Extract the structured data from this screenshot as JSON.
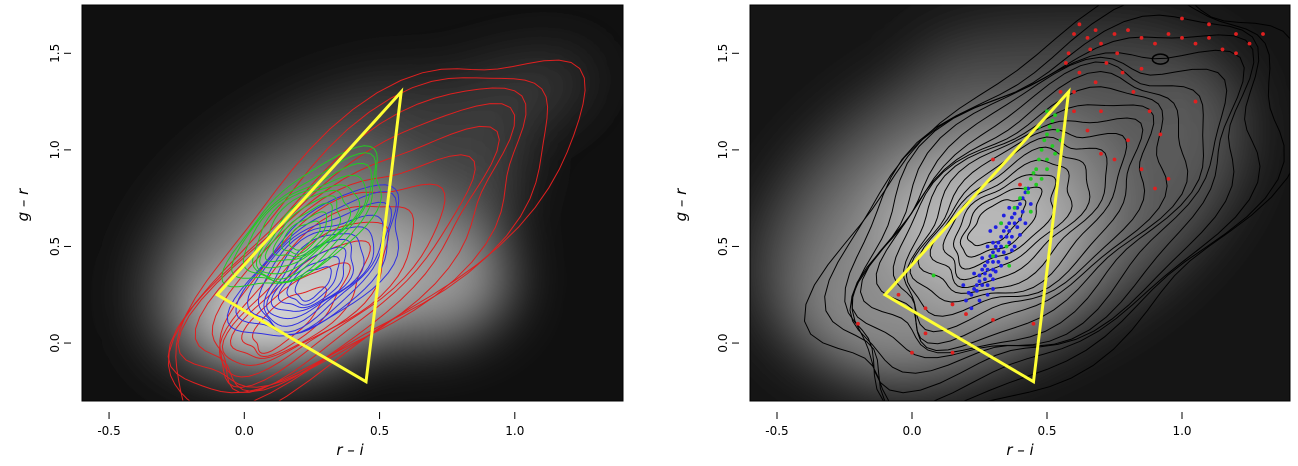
{
  "chart_data": [
    {
      "type": "scatter",
      "title": "",
      "xlabel": "r – i",
      "ylabel": "g – r",
      "xlim": [
        -0.6,
        1.4
      ],
      "ylim": [
        -0.3,
        1.75
      ],
      "x_ticks": [
        "-0.5",
        "0.0",
        "0.5",
        "1.0"
      ],
      "y_ticks": [
        "0.0",
        "0.5",
        "1.0",
        "1.5"
      ],
      "background": "grayscale density map",
      "selection_triangle": {
        "color": "#ffff33",
        "vertices": [
          [
            -0.1,
            0.25
          ],
          [
            0.58,
            1.3
          ],
          [
            0.45,
            -0.2
          ]
        ]
      },
      "contour_sets": [
        {
          "color": "#e02020",
          "levels": 12,
          "center": [
            0.13,
            0.08
          ]
        },
        {
          "color": "#3030e0",
          "levels": 10,
          "center": [
            0.25,
            0.3
          ]
        },
        {
          "color": "#22cc22",
          "levels": 10,
          "center": [
            0.22,
            0.55
          ]
        }
      ],
      "grid": false
    },
    {
      "type": "scatter",
      "title": "",
      "xlabel": "r – i",
      "ylabel": "g – r",
      "xlim": [
        -0.6,
        1.4
      ],
      "ylim": [
        -0.3,
        1.75
      ],
      "x_ticks": [
        "-0.5",
        "0.0",
        "0.5",
        "1.0"
      ],
      "y_ticks": [
        "0.0",
        "0.5",
        "1.0",
        "1.5"
      ],
      "background": "grayscale density map",
      "selection_triangle": {
        "color": "#ffff33",
        "vertices": [
          [
            -0.1,
            0.25
          ],
          [
            0.58,
            1.3
          ],
          [
            0.45,
            -0.2
          ]
        ]
      },
      "contour_color": "#000000",
      "series": [
        {
          "color": "#2020e0",
          "points": [
            [
              0.2,
              0.22
            ],
            [
              0.22,
              0.25
            ],
            [
              0.24,
              0.3
            ],
            [
              0.25,
              0.35
            ],
            [
              0.26,
              0.38
            ],
            [
              0.27,
              0.4
            ],
            [
              0.28,
              0.42
            ],
            [
              0.29,
              0.45
            ],
            [
              0.3,
              0.47
            ],
            [
              0.31,
              0.5
            ],
            [
              0.32,
              0.52
            ],
            [
              0.33,
              0.55
            ],
            [
              0.34,
              0.58
            ],
            [
              0.35,
              0.6
            ],
            [
              0.36,
              0.62
            ],
            [
              0.37,
              0.65
            ],
            [
              0.38,
              0.67
            ],
            [
              0.39,
              0.7
            ],
            [
              0.4,
              0.72
            ],
            [
              0.41,
              0.75
            ],
            [
              0.42,
              0.78
            ],
            [
              0.43,
              0.8
            ],
            [
              0.23,
              0.28
            ],
            [
              0.25,
              0.32
            ],
            [
              0.27,
              0.36
            ],
            [
              0.28,
              0.38
            ],
            [
              0.3,
              0.42
            ],
            [
              0.31,
              0.45
            ],
            [
              0.32,
              0.48
            ],
            [
              0.33,
              0.5
            ],
            [
              0.35,
              0.55
            ],
            [
              0.36,
              0.58
            ],
            [
              0.38,
              0.62
            ],
            [
              0.26,
              0.3
            ],
            [
              0.29,
              0.35
            ],
            [
              0.3,
              0.38
            ],
            [
              0.32,
              0.42
            ],
            [
              0.34,
              0.47
            ],
            [
              0.36,
              0.52
            ],
            [
              0.37,
              0.55
            ],
            [
              0.39,
              0.6
            ],
            [
              0.4,
              0.64
            ],
            [
              0.41,
              0.68
            ],
            [
              0.21,
              0.26
            ],
            [
              0.24,
              0.27
            ],
            [
              0.27,
              0.33
            ],
            [
              0.28,
              0.3
            ],
            [
              0.3,
              0.33
            ],
            [
              0.31,
              0.37
            ],
            [
              0.33,
              0.4
            ],
            [
              0.35,
              0.44
            ],
            [
              0.37,
              0.48
            ],
            [
              0.38,
              0.5
            ],
            [
              0.22,
              0.18
            ],
            [
              0.25,
              0.22
            ],
            [
              0.28,
              0.25
            ],
            [
              0.3,
              0.28
            ],
            [
              0.26,
              0.44
            ],
            [
              0.28,
              0.5
            ],
            [
              0.3,
              0.52
            ],
            [
              0.33,
              0.62
            ],
            [
              0.34,
              0.66
            ],
            [
              0.42,
              0.62
            ],
            [
              0.44,
              0.72
            ],
            [
              0.19,
              0.3
            ],
            [
              0.23,
              0.36
            ],
            [
              0.29,
              0.58
            ],
            [
              0.31,
              0.6
            ],
            [
              0.36,
              0.7
            ],
            [
              0.4,
              0.56
            ]
          ]
        },
        {
          "color": "#22cc22",
          "points": [
            [
              0.38,
              0.7
            ],
            [
              0.4,
              0.75
            ],
            [
              0.42,
              0.8
            ],
            [
              0.44,
              0.85
            ],
            [
              0.45,
              0.88
            ],
            [
              0.46,
              0.9
            ],
            [
              0.47,
              0.95
            ],
            [
              0.48,
              1.0
            ],
            [
              0.49,
              1.05
            ],
            [
              0.5,
              1.08
            ],
            [
              0.51,
              1.12
            ],
            [
              0.52,
              1.15
            ],
            [
              0.53,
              1.18
            ],
            [
              0.54,
              1.1
            ],
            [
              0.5,
              0.95
            ],
            [
              0.48,
              0.85
            ],
            [
              0.35,
              0.5
            ],
            [
              0.3,
              0.45
            ],
            [
              0.33,
              0.62
            ],
            [
              0.43,
              0.78
            ],
            [
              0.46,
              0.82
            ],
            [
              0.5,
              0.9
            ],
            [
              0.52,
              1.02
            ],
            [
              0.55,
              1.05
            ],
            [
              0.47,
              1.12
            ],
            [
              0.44,
              0.68
            ],
            [
              0.36,
              0.4
            ],
            [
              0.08,
              0.35
            ],
            [
              0.5,
              1.2
            ],
            [
              0.53,
              0.98
            ]
          ]
        },
        {
          "color": "#e02020",
          "points": [
            [
              0.6,
              1.6
            ],
            [
              0.65,
              1.58
            ],
            [
              0.7,
              1.55
            ],
            [
              0.75,
              1.6
            ],
            [
              0.8,
              1.62
            ],
            [
              0.85,
              1.58
            ],
            [
              0.9,
              1.55
            ],
            [
              0.95,
              1.6
            ],
            [
              1.0,
              1.58
            ],
            [
              1.05,
              1.55
            ],
            [
              1.1,
              1.58
            ],
            [
              1.15,
              1.52
            ],
            [
              1.2,
              1.6
            ],
            [
              1.25,
              1.55
            ],
            [
              1.3,
              1.6
            ],
            [
              0.62,
              1.4
            ],
            [
              0.68,
              1.35
            ],
            [
              0.72,
              1.45
            ],
            [
              0.78,
              1.4
            ],
            [
              0.82,
              1.3
            ],
            [
              0.88,
              1.2
            ],
            [
              0.6,
              1.2
            ],
            [
              0.65,
              1.1
            ],
            [
              0.7,
              0.98
            ],
            [
              0.75,
              0.95
            ],
            [
              0.8,
              1.05
            ],
            [
              0.85,
              0.9
            ],
            [
              0.9,
              0.8
            ],
            [
              0.95,
              0.85
            ],
            [
              0.58,
              1.5
            ],
            [
              0.57,
              1.45
            ],
            [
              0.62,
              1.65
            ],
            [
              0.68,
              1.62
            ],
            [
              0.76,
              1.5
            ],
            [
              1.1,
              1.65
            ],
            [
              1.0,
              1.68
            ],
            [
              0.6,
              1.3
            ],
            [
              0.55,
              1.3
            ],
            [
              1.05,
              1.25
            ],
            [
              0.92,
              1.08
            ],
            [
              0.3,
              0.95
            ],
            [
              0.4,
              0.82
            ],
            [
              0.15,
              0.2
            ],
            [
              0.2,
              0.15
            ],
            [
              0.3,
              0.12
            ],
            [
              0.45,
              0.1
            ],
            [
              0.05,
              0.05
            ],
            [
              0.0,
              -0.05
            ],
            [
              0.15,
              -0.05
            ],
            [
              -0.05,
              0.25
            ],
            [
              -0.2,
              0.1
            ],
            [
              0.05,
              0.18
            ],
            [
              0.7,
              1.2
            ],
            [
              0.85,
              1.42
            ],
            [
              1.2,
              1.5
            ],
            [
              0.66,
              1.52
            ]
          ]
        }
      ],
      "grid": false
    }
  ]
}
